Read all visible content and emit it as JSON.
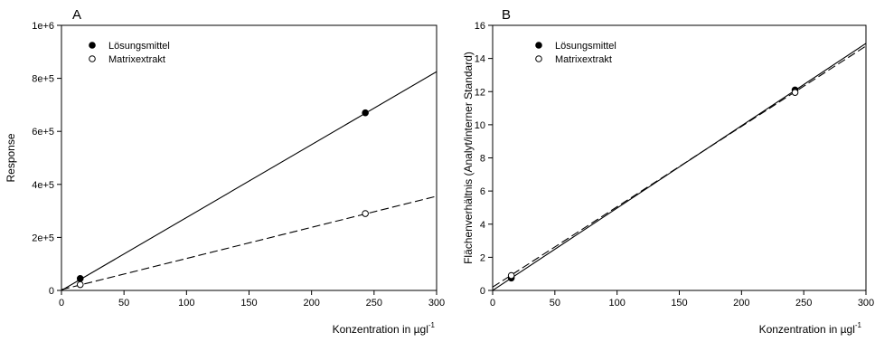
{
  "chart_data": [
    {
      "type": "scatter",
      "panel_label": "A",
      "xlabel": "Konzentration in µgl",
      "xlabel_sup": "-1",
      "ylabel": "Response",
      "xlim": [
        0,
        300
      ],
      "ylim": [
        0,
        1000000
      ],
      "x_ticks": [
        0,
        50,
        100,
        150,
        200,
        250,
        300
      ],
      "x_tick_labels": [
        "0",
        "50",
        "100",
        "150",
        "200",
        "250",
        "300"
      ],
      "y_ticks": [
        0,
        200000,
        400000,
        600000,
        800000,
        1000000
      ],
      "y_tick_labels": [
        "0",
        "2e+5",
        "4e+5",
        "6e+5",
        "8e+5",
        "1e+6"
      ],
      "grid": false,
      "legend_position": "top-left",
      "series": [
        {
          "name": "Lösungsmittel",
          "marker": "filled-circle",
          "line_style": "solid",
          "points": [
            {
              "x": 15,
              "y": 45000
            },
            {
              "x": 243,
              "y": 670000
            }
          ],
          "fit_line": {
            "slope": 2750,
            "intercept": 0
          }
        },
        {
          "name": "Matrixextrakt",
          "marker": "open-circle",
          "line_style": "dashed",
          "points": [
            {
              "x": 15,
              "y": 22000
            },
            {
              "x": 243,
              "y": 290000
            }
          ],
          "fit_line": {
            "slope": 1175,
            "intercept": 3000
          }
        }
      ]
    },
    {
      "type": "scatter",
      "panel_label": "B",
      "xlabel": "Konzentration in µgl",
      "xlabel_sup": "-1",
      "ylabel": "Flächenverhältnis (Analyt/interner Standard)",
      "xlim": [
        0,
        300
      ],
      "ylim": [
        0,
        16
      ],
      "x_ticks": [
        0,
        50,
        100,
        150,
        200,
        250,
        300
      ],
      "x_tick_labels": [
        "0",
        "50",
        "100",
        "150",
        "200",
        "250",
        "300"
      ],
      "y_ticks": [
        0,
        2,
        4,
        6,
        8,
        10,
        12,
        14,
        16
      ],
      "y_tick_labels": [
        "0",
        "2",
        "4",
        "6",
        "8",
        "10",
        "12",
        "14",
        "16"
      ],
      "grid": false,
      "legend_position": "top-left",
      "series": [
        {
          "name": "Lösungsmittel",
          "marker": "filled-circle",
          "line_style": "solid",
          "points": [
            {
              "x": 15,
              "y": 0.75
            },
            {
              "x": 243,
              "y": 12.1
            }
          ],
          "fit_line": {
            "slope": 0.0497,
            "intercept": 0.0
          }
        },
        {
          "name": "Matrixextrakt",
          "marker": "open-circle",
          "line_style": "dashed",
          "points": [
            {
              "x": 15,
              "y": 0.9
            },
            {
              "x": 243,
              "y": 11.95
            }
          ],
          "fit_line": {
            "slope": 0.0485,
            "intercept": 0.2
          }
        }
      ]
    }
  ]
}
